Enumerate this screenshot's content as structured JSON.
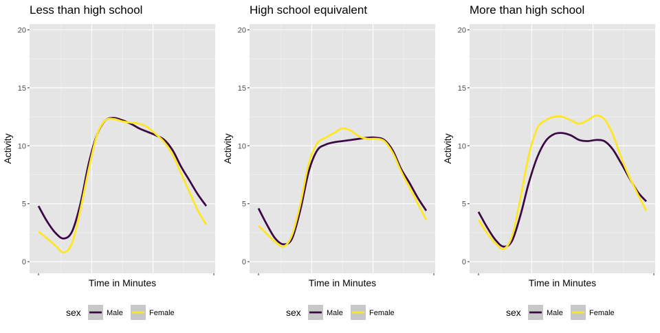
{
  "style": {
    "panel_bg": "#e5e5e5",
    "grid_major": "#ffffff",
    "key_bg": "#c8c8c8",
    "male_color": "#3b0a45",
    "female_color": "#fde725"
  },
  "chart_data": [
    {
      "type": "line",
      "title": "Less than high school",
      "xlabel": "Time in Minutes",
      "ylabel": "Activity",
      "ylim": [
        -1,
        20.5
      ],
      "y_ticks": [
        0,
        5,
        10,
        15,
        20
      ],
      "x_tick_labels": [],
      "grid": true,
      "legend": "bottom",
      "x": [
        0,
        0.05,
        0.1,
        0.15,
        0.2,
        0.25,
        0.3,
        0.35,
        0.4,
        0.45,
        0.5,
        0.55,
        0.6,
        0.65,
        0.7,
        0.75,
        0.8,
        0.85,
        0.9,
        0.95,
        1
      ],
      "series": [
        {
          "name": "Male",
          "values": [
            4.8,
            3.5,
            2.5,
            2.0,
            2.6,
            5.0,
            8.5,
            11.0,
            12.2,
            12.4,
            12.2,
            11.9,
            11.5,
            11.2,
            10.9,
            10.5,
            9.6,
            8.2,
            7.0,
            5.8,
            4.8
          ]
        },
        {
          "name": "Female",
          "values": [
            2.6,
            2.0,
            1.4,
            0.8,
            1.6,
            4.5,
            8.0,
            11.0,
            12.2,
            12.3,
            12.1,
            12.0,
            11.9,
            11.6,
            11.0,
            10.3,
            9.2,
            7.6,
            6.0,
            4.4,
            3.2
          ]
        }
      ]
    },
    {
      "type": "line",
      "title": "High school equivalent",
      "xlabel": "Time in Minutes",
      "ylabel": "Activity",
      "ylim": [
        -1,
        20.5
      ],
      "y_ticks": [
        0,
        5,
        10,
        15,
        20
      ],
      "x_tick_labels": [],
      "grid": true,
      "legend": "bottom",
      "x": [
        0,
        0.05,
        0.1,
        0.15,
        0.2,
        0.25,
        0.3,
        0.35,
        0.4,
        0.45,
        0.5,
        0.55,
        0.6,
        0.65,
        0.7,
        0.75,
        0.8,
        0.85,
        0.9,
        0.95,
        1
      ],
      "series": [
        {
          "name": "Male",
          "values": [
            4.6,
            3.2,
            2.0,
            1.5,
            2.0,
            4.5,
            7.8,
            9.6,
            10.1,
            10.3,
            10.4,
            10.5,
            10.6,
            10.7,
            10.7,
            10.5,
            9.6,
            8.0,
            6.8,
            5.5,
            4.4
          ]
        },
        {
          "name": "Female",
          "values": [
            3.1,
            2.4,
            1.7,
            1.3,
            2.3,
            5.0,
            8.5,
            10.2,
            10.7,
            11.1,
            11.5,
            11.3,
            10.8,
            10.6,
            10.6,
            10.4,
            9.4,
            7.8,
            6.4,
            5.0,
            3.6
          ]
        }
      ]
    },
    {
      "type": "line",
      "title": "More than high school",
      "xlabel": "Time in Minutes",
      "ylabel": "Activity",
      "ylim": [
        -1,
        20.5
      ],
      "y_ticks": [
        0,
        5,
        10,
        15,
        20
      ],
      "x_tick_labels": [],
      "grid": true,
      "legend": "bottom",
      "x": [
        0,
        0.05,
        0.1,
        0.15,
        0.2,
        0.25,
        0.3,
        0.35,
        0.4,
        0.45,
        0.5,
        0.55,
        0.6,
        0.65,
        0.7,
        0.75,
        0.8,
        0.85,
        0.9,
        0.95,
        1
      ],
      "series": [
        {
          "name": "Male",
          "values": [
            4.3,
            3.0,
            1.9,
            1.3,
            1.8,
            4.0,
            6.8,
            9.0,
            10.4,
            11.0,
            11.1,
            10.9,
            10.5,
            10.4,
            10.5,
            10.4,
            9.7,
            8.5,
            7.2,
            6.0,
            5.2
          ]
        },
        {
          "name": "Female",
          "values": [
            3.6,
            2.5,
            1.6,
            1.1,
            2.2,
            5.5,
            9.2,
            11.5,
            12.2,
            12.5,
            12.5,
            12.2,
            11.9,
            12.2,
            12.6,
            12.3,
            11.0,
            9.0,
            7.3,
            5.8,
            4.4
          ]
        }
      ]
    }
  ],
  "legend": {
    "title": "sex",
    "items": [
      {
        "label": "Male"
      },
      {
        "label": "Female"
      }
    ]
  }
}
